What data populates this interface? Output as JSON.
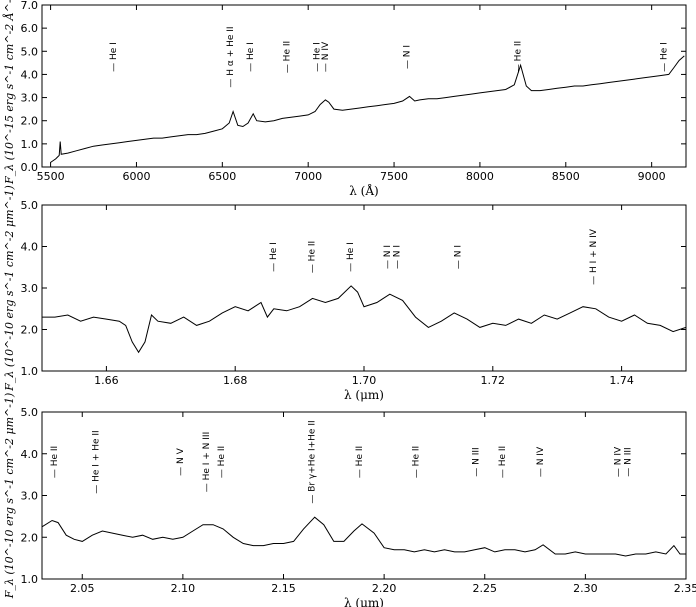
{
  "chart_data": [
    {
      "type": "line",
      "xlabel": "λ (Å)",
      "ylabel": "F_λ (10^-15 erg s^-1 cm^-2 Å^-1)",
      "xlim": [
        5450,
        9200
      ],
      "ylim": [
        0,
        7.0
      ],
      "xticks": [
        "5500",
        "6000",
        "6500",
        "7000",
        "7500",
        "8000",
        "8500",
        "9000"
      ],
      "yticks": [
        "0.0",
        "1.0",
        "2.0",
        "3.0",
        "4.0",
        "5.0",
        "6.0",
        "7.0"
      ],
      "lines": [
        {
          "x": 5880,
          "label": "He I"
        },
        {
          "x": 6563,
          "label": "H α + He II"
        },
        {
          "x": 6678,
          "label": "He I"
        },
        {
          "x": 6890,
          "label": "He II"
        },
        {
          "x": 7065,
          "label": "He I"
        },
        {
          "x": 7115,
          "label": "N IV"
        },
        {
          "x": 7590,
          "label": "N I"
        },
        {
          "x": 8237,
          "label": "He II"
        },
        {
          "x": 9085,
          "label": "He I"
        }
      ],
      "series": [
        {
          "values": [
            [
              5500,
              0.2
            ],
            [
              5530,
              0.35
            ],
            [
              5550,
              0.5
            ],
            [
              5556,
              1.1
            ],
            [
              5562,
              0.55
            ],
            [
              5600,
              0.6
            ],
            [
              5650,
              0.7
            ],
            [
              5700,
              0.8
            ],
            [
              5750,
              0.9
            ],
            [
              5800,
              0.95
            ],
            [
              5850,
              1.0
            ],
            [
              5900,
              1.05
            ],
            [
              5950,
              1.1
            ],
            [
              6000,
              1.15
            ],
            [
              6050,
              1.2
            ],
            [
              6100,
              1.25
            ],
            [
              6150,
              1.25
            ],
            [
              6200,
              1.3
            ],
            [
              6250,
              1.35
            ],
            [
              6300,
              1.4
            ],
            [
              6350,
              1.4
            ],
            [
              6400,
              1.45
            ],
            [
              6450,
              1.55
            ],
            [
              6500,
              1.65
            ],
            [
              6540,
              1.9
            ],
            [
              6563,
              2.4
            ],
            [
              6590,
              1.8
            ],
            [
              6620,
              1.75
            ],
            [
              6650,
              1.9
            ],
            [
              6680,
              2.3
            ],
            [
              6700,
              2.0
            ],
            [
              6750,
              1.95
            ],
            [
              6800,
              2.0
            ],
            [
              6850,
              2.1
            ],
            [
              6900,
              2.15
            ],
            [
              6950,
              2.2
            ],
            [
              7000,
              2.25
            ],
            [
              7040,
              2.4
            ],
            [
              7070,
              2.7
            ],
            [
              7100,
              2.9
            ],
            [
              7120,
              2.8
            ],
            [
              7150,
              2.5
            ],
            [
              7200,
              2.45
            ],
            [
              7250,
              2.5
            ],
            [
              7300,
              2.55
            ],
            [
              7350,
              2.6
            ],
            [
              7400,
              2.65
            ],
            [
              7450,
              2.7
            ],
            [
              7500,
              2.75
            ],
            [
              7550,
              2.85
            ],
            [
              7590,
              3.05
            ],
            [
              7620,
              2.85
            ],
            [
              7650,
              2.9
            ],
            [
              7700,
              2.95
            ],
            [
              7750,
              2.95
            ],
            [
              7800,
              3.0
            ],
            [
              7850,
              3.05
            ],
            [
              7900,
              3.1
            ],
            [
              7950,
              3.15
            ],
            [
              8000,
              3.2
            ],
            [
              8050,
              3.25
            ],
            [
              8100,
              3.3
            ],
            [
              8150,
              3.35
            ],
            [
              8200,
              3.55
            ],
            [
              8237,
              4.4
            ],
            [
              8270,
              3.5
            ],
            [
              8300,
              3.3
            ],
            [
              8350,
              3.3
            ],
            [
              8400,
              3.35
            ],
            [
              8450,
              3.4
            ],
            [
              8500,
              3.45
            ],
            [
              8550,
              3.5
            ],
            [
              8600,
              3.5
            ],
            [
              8650,
              3.55
            ],
            [
              8700,
              3.6
            ],
            [
              8750,
              3.65
            ],
            [
              8800,
              3.7
            ],
            [
              8850,
              3.75
            ],
            [
              8900,
              3.8
            ],
            [
              8950,
              3.85
            ],
            [
              9000,
              3.9
            ],
            [
              9050,
              3.95
            ],
            [
              9100,
              4.0
            ],
            [
              9130,
              4.3
            ],
            [
              9160,
              4.6
            ],
            [
              9190,
              4.8
            ]
          ]
        }
      ]
    },
    {
      "type": "line",
      "xlabel": "λ (μm)",
      "ylabel": "F_λ (10^-10 erg s^-1 cm^-2 μm^-1)",
      "xlim": [
        1.65,
        1.75
      ],
      "ylim": [
        1.0,
        5.0
      ],
      "xticks": [
        "1.66",
        "1.68",
        "1.70",
        "1.72",
        "1.74"
      ],
      "yticks": [
        "1.0",
        "2.0",
        "3.0",
        "4.0",
        "5.0"
      ],
      "lines": [
        {
          "x": 1.6863,
          "label": "He I"
        },
        {
          "x": 1.6923,
          "label": "He II"
        },
        {
          "x": 1.6983,
          "label": "He I"
        },
        {
          "x": 1.704,
          "label": "N I"
        },
        {
          "x": 1.7055,
          "label": "N I"
        },
        {
          "x": 1.715,
          "label": "N I"
        },
        {
          "x": 1.736,
          "label": "H I + N IV"
        }
      ],
      "series": [
        {
          "values": [
            [
              1.65,
              2.3
            ],
            [
              1.652,
              2.3
            ],
            [
              1.654,
              2.35
            ],
            [
              1.656,
              2.2
            ],
            [
              1.658,
              2.3
            ],
            [
              1.66,
              2.25
            ],
            [
              1.662,
              2.2
            ],
            [
              1.663,
              2.1
            ],
            [
              1.664,
              1.7
            ],
            [
              1.665,
              1.45
            ],
            [
              1.666,
              1.7
            ],
            [
              1.667,
              2.35
            ],
            [
              1.668,
              2.2
            ],
            [
              1.67,
              2.15
            ],
            [
              1.672,
              2.3
            ],
            [
              1.674,
              2.1
            ],
            [
              1.676,
              2.2
            ],
            [
              1.678,
              2.4
            ],
            [
              1.68,
              2.55
            ],
            [
              1.682,
              2.45
            ],
            [
              1.684,
              2.65
            ],
            [
              1.685,
              2.3
            ],
            [
              1.686,
              2.5
            ],
            [
              1.688,
              2.45
            ],
            [
              1.69,
              2.55
            ],
            [
              1.692,
              2.75
            ],
            [
              1.694,
              2.65
            ],
            [
              1.696,
              2.75
            ],
            [
              1.698,
              3.05
            ],
            [
              1.699,
              2.9
            ],
            [
              1.7,
              2.55
            ],
            [
              1.702,
              2.65
            ],
            [
              1.704,
              2.85
            ],
            [
              1.706,
              2.7
            ],
            [
              1.708,
              2.3
            ],
            [
              1.71,
              2.05
            ],
            [
              1.712,
              2.2
            ],
            [
              1.714,
              2.4
            ],
            [
              1.716,
              2.25
            ],
            [
              1.718,
              2.05
            ],
            [
              1.72,
              2.15
            ],
            [
              1.722,
              2.1
            ],
            [
              1.724,
              2.25
            ],
            [
              1.726,
              2.15
            ],
            [
              1.728,
              2.35
            ],
            [
              1.73,
              2.25
            ],
            [
              1.732,
              2.4
            ],
            [
              1.734,
              2.55
            ],
            [
              1.736,
              2.5
            ],
            [
              1.738,
              2.3
            ],
            [
              1.74,
              2.2
            ],
            [
              1.742,
              2.35
            ],
            [
              1.744,
              2.15
            ],
            [
              1.746,
              2.1
            ],
            [
              1.748,
              1.95
            ],
            [
              1.75,
              2.05
            ]
          ]
        }
      ]
    },
    {
      "type": "line",
      "xlabel": "λ (μm)",
      "ylabel": "F_λ (10^-10 erg s^-1 cm^-2 μm^-1)",
      "xlim": [
        2.03,
        2.35
      ],
      "ylim": [
        1.0,
        5.0
      ],
      "xticks": [
        "2.05",
        "2.10",
        "2.15",
        "2.20",
        "2.25",
        "2.30",
        "2.35"
      ],
      "yticks": [
        "1.0",
        "2.0",
        "3.0",
        "4.0",
        "5.0"
      ],
      "lines": [
        {
          "x": 2.0375,
          "label": "He II"
        },
        {
          "x": 2.058,
          "label": "He I + He II"
        },
        {
          "x": 2.1,
          "label": "N V"
        },
        {
          "x": 2.113,
          "label": "He I + N III"
        },
        {
          "x": 2.1205,
          "label": "He II"
        },
        {
          "x": 2.1655,
          "label": "Br γ+He I+He II"
        },
        {
          "x": 2.189,
          "label": "He II"
        },
        {
          "x": 2.217,
          "label": "He II"
        },
        {
          "x": 2.247,
          "label": "N III"
        },
        {
          "x": 2.26,
          "label": "He II"
        },
        {
          "x": 2.279,
          "label": "N IV"
        },
        {
          "x": 2.3175,
          "label": "N IV"
        },
        {
          "x": 2.3225,
          "label": "N III"
        }
      ],
      "series": [
        {
          "values": [
            [
              2.03,
              2.25
            ],
            [
              2.035,
              2.4
            ],
            [
              2.038,
              2.35
            ],
            [
              2.042,
              2.05
            ],
            [
              2.046,
              1.95
            ],
            [
              2.05,
              1.9
            ],
            [
              2.055,
              2.05
            ],
            [
              2.06,
              2.15
            ],
            [
              2.065,
              2.1
            ],
            [
              2.07,
              2.05
            ],
            [
              2.075,
              2.0
            ],
            [
              2.08,
              2.05
            ],
            [
              2.085,
              1.95
            ],
            [
              2.09,
              2.0
            ],
            [
              2.095,
              1.95
            ],
            [
              2.1,
              2.0
            ],
            [
              2.105,
              2.15
            ],
            [
              2.11,
              2.3
            ],
            [
              2.115,
              2.3
            ],
            [
              2.12,
              2.2
            ],
            [
              2.125,
              2.0
            ],
            [
              2.13,
              1.85
            ],
            [
              2.135,
              1.8
            ],
            [
              2.14,
              1.8
            ],
            [
              2.145,
              1.85
            ],
            [
              2.15,
              1.85
            ],
            [
              2.155,
              1.9
            ],
            [
              2.16,
              2.2
            ],
            [
              2.1655,
              2.48
            ],
            [
              2.17,
              2.3
            ],
            [
              2.175,
              1.9
            ],
            [
              2.18,
              1.9
            ],
            [
              2.185,
              2.15
            ],
            [
              2.189,
              2.32
            ],
            [
              2.195,
              2.1
            ],
            [
              2.2,
              1.75
            ],
            [
              2.205,
              1.7
            ],
            [
              2.21,
              1.7
            ],
            [
              2.215,
              1.65
            ],
            [
              2.22,
              1.7
            ],
            [
              2.225,
              1.65
            ],
            [
              2.23,
              1.7
            ],
            [
              2.235,
              1.65
            ],
            [
              2.24,
              1.65
            ],
            [
              2.245,
              1.7
            ],
            [
              2.25,
              1.75
            ],
            [
              2.255,
              1.65
            ],
            [
              2.26,
              1.7
            ],
            [
              2.265,
              1.7
            ],
            [
              2.27,
              1.65
            ],
            [
              2.275,
              1.7
            ],
            [
              2.279,
              1.82
            ],
            [
              2.285,
              1.6
            ],
            [
              2.29,
              1.6
            ],
            [
              2.295,
              1.65
            ],
            [
              2.3,
              1.6
            ],
            [
              2.305,
              1.6
            ],
            [
              2.31,
              1.6
            ],
            [
              2.315,
              1.6
            ],
            [
              2.32,
              1.55
            ],
            [
              2.325,
              1.6
            ],
            [
              2.33,
              1.6
            ],
            [
              2.335,
              1.65
            ],
            [
              2.34,
              1.6
            ],
            [
              2.344,
              1.8
            ],
            [
              2.347,
              1.6
            ],
            [
              2.35,
              1.6
            ]
          ]
        }
      ]
    }
  ]
}
